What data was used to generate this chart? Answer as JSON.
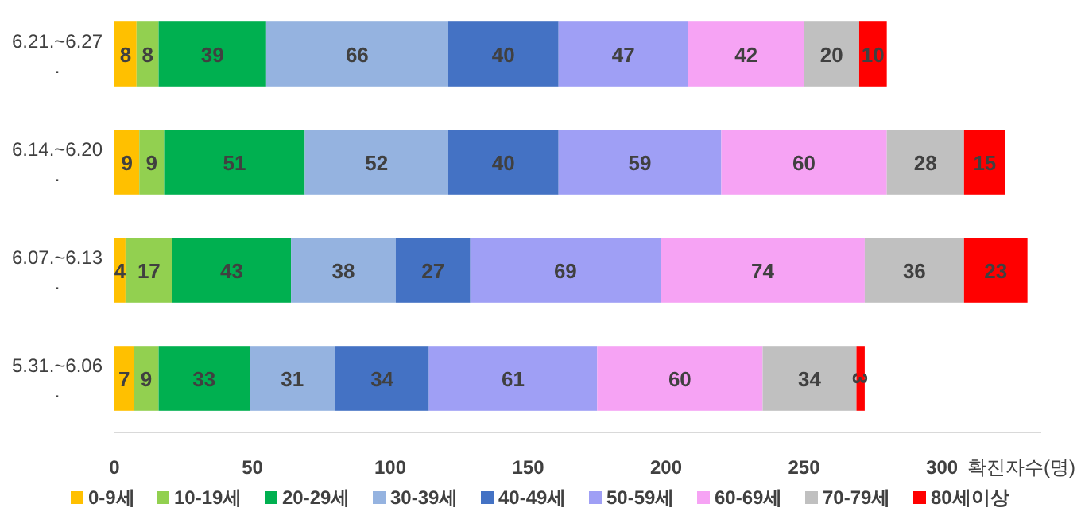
{
  "chart_data": {
    "type": "bar",
    "orientation": "horizontal",
    "stacked": true,
    "data_labels": true,
    "legend": "bottom",
    "grid": false,
    "categories": [
      "6.21.~6.27\n.",
      "6.14.~6.20\n.",
      "6.07.~6.13\n.",
      "5.31.~6.06\n."
    ],
    "xlabel": "확진자수(명)",
    "xlim": [
      0,
      336
    ],
    "xticks": [
      0,
      50,
      100,
      150,
      200,
      250,
      300
    ],
    "series": [
      {
        "name": "0-9세",
        "color": "#ffc000",
        "values": [
          8,
          9,
          4,
          7
        ]
      },
      {
        "name": "10-19세",
        "color": "#92d050",
        "values": [
          8,
          9,
          17,
          9
        ]
      },
      {
        "name": "20-29세",
        "color": "#00b050",
        "values": [
          39,
          51,
          43,
          33
        ]
      },
      {
        "name": "30-39세",
        "color": "#95b3e0",
        "values": [
          66,
          52,
          38,
          31
        ]
      },
      {
        "name": "40-49세",
        "color": "#4472c4",
        "values": [
          40,
          40,
          27,
          34
        ]
      },
      {
        "name": "50-59세",
        "color": "#9f9ff5",
        "values": [
          47,
          59,
          69,
          61
        ]
      },
      {
        "name": "60-69세",
        "color": "#f6a3f4",
        "values": [
          42,
          60,
          74,
          60
        ]
      },
      {
        "name": "70-79세",
        "color": "#c0c0c0",
        "values": [
          20,
          28,
          36,
          34
        ]
      },
      {
        "name": "80세이상",
        "color": "#ff0000",
        "values": [
          10,
          15,
          23,
          3
        ]
      }
    ]
  }
}
